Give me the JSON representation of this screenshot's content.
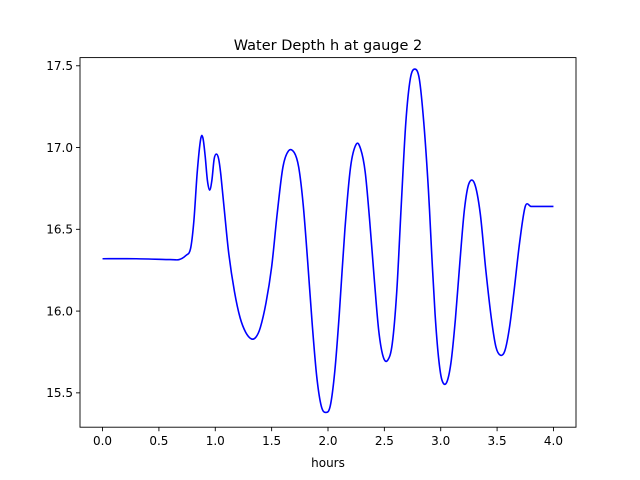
{
  "chart_data": {
    "type": "line",
    "title": "Water Depth h at gauge 2",
    "xlabel": "hours",
    "ylabel": "",
    "xlim": [
      -0.2,
      4.2
    ],
    "ylim": [
      15.29,
      17.55
    ],
    "xticks": [
      0.0,
      0.5,
      1.0,
      1.5,
      2.0,
      2.5,
      3.0,
      3.5,
      4.0
    ],
    "xtick_labels": [
      "0.0",
      "0.5",
      "1.0",
      "1.5",
      "2.0",
      "2.5",
      "3.0",
      "3.5",
      "4.0"
    ],
    "yticks": [
      15.5,
      16.0,
      16.5,
      17.0,
      17.5
    ],
    "ytick_labels": [
      "15.5",
      "16.0",
      "16.5",
      "17.0",
      "17.5"
    ],
    "grid": false,
    "color": "#0000ff",
    "x": [
      0.0,
      0.3,
      0.6,
      0.68,
      0.74,
      0.78,
      0.81,
      0.84,
      0.87,
      0.89,
      0.91,
      0.93,
      0.95,
      0.97,
      0.99,
      1.01,
      1.03,
      1.05,
      1.08,
      1.12,
      1.17,
      1.22,
      1.27,
      1.32,
      1.36,
      1.4,
      1.45,
      1.5,
      1.55,
      1.6,
      1.65,
      1.7,
      1.74,
      1.78,
      1.82,
      1.86,
      1.9,
      1.94,
      1.98,
      2.02,
      2.06,
      2.1,
      2.15,
      2.2,
      2.25,
      2.29,
      2.33,
      2.37,
      2.41,
      2.45,
      2.49,
      2.53,
      2.57,
      2.61,
      2.65,
      2.69,
      2.73,
      2.77,
      2.81,
      2.85,
      2.89,
      2.92,
      2.95,
      2.98,
      3.01,
      3.05,
      3.09,
      3.13,
      3.17,
      3.21,
      3.25,
      3.3,
      3.35,
      3.4,
      3.45,
      3.49,
      3.53,
      3.57,
      3.61,
      3.65,
      3.7,
      3.75,
      3.8,
      3.85,
      3.9,
      3.95,
      4.0
    ],
    "y": [
      16.32,
      16.32,
      16.315,
      16.315,
      16.34,
      16.38,
      16.55,
      16.85,
      17.05,
      17.06,
      16.95,
      16.8,
      16.74,
      16.8,
      16.93,
      16.96,
      16.93,
      16.83,
      16.62,
      16.35,
      16.12,
      15.96,
      15.87,
      15.83,
      15.84,
      15.9,
      16.05,
      16.27,
      16.6,
      16.88,
      16.98,
      16.97,
      16.88,
      16.65,
      16.3,
      15.92,
      15.6,
      15.42,
      15.38,
      15.42,
      15.63,
      15.98,
      16.5,
      16.88,
      17.02,
      16.99,
      16.85,
      16.55,
      16.2,
      15.88,
      15.72,
      15.7,
      15.8,
      16.12,
      16.65,
      17.15,
      17.42,
      17.48,
      17.42,
      17.15,
      16.75,
      16.35,
      15.98,
      15.72,
      15.58,
      15.56,
      15.68,
      15.95,
      16.3,
      16.62,
      16.78,
      16.78,
      16.6,
      16.25,
      15.95,
      15.78,
      15.73,
      15.76,
      15.9,
      16.12,
      16.42,
      16.64,
      16.64,
      16.64,
      16.64,
      16.64,
      16.64
    ]
  }
}
